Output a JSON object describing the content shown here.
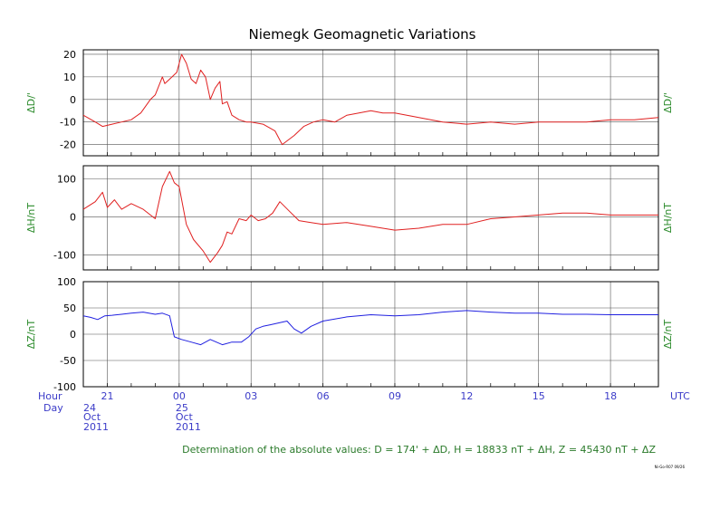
{
  "chart_data": {
    "type": "line",
    "title": "Niemegk  Geomagnetic Variations",
    "x_unit": "hours since 24 Oct 2011 20:00 UTC",
    "xlim": [
      0,
      24
    ],
    "x_ticks": [
      {
        "x": 1,
        "label": "21"
      },
      {
        "x": 4,
        "label": "00"
      },
      {
        "x": 7,
        "label": "03"
      },
      {
        "x": 10,
        "label": "06"
      },
      {
        "x": 13,
        "label": "09"
      },
      {
        "x": 16,
        "label": "12"
      },
      {
        "x": 19,
        "label": "15"
      },
      {
        "x": 22,
        "label": "18"
      }
    ],
    "hour_label": "Hour",
    "day_label": "Day",
    "utc_label": "UTC",
    "days": [
      {
        "x": 0,
        "day": "24",
        "month": "Oct",
        "year": "2011"
      },
      {
        "x": 4,
        "day": "25",
        "month": "Oct",
        "year": "2011"
      }
    ],
    "panels": [
      {
        "name": "D",
        "ylabel": "ΔD/'",
        "ylim": [
          -25,
          22
        ],
        "yticks": [
          -20,
          -10,
          0,
          10,
          20
        ],
        "color": "#e02020",
        "x": [
          0,
          0.5,
          0.8,
          1.2,
          1.6,
          2.0,
          2.4,
          2.8,
          3.0,
          3.3,
          3.4,
          3.6,
          3.9,
          4.1,
          4.3,
          4.5,
          4.7,
          4.9,
          5.1,
          5.3,
          5.5,
          5.7,
          5.8,
          6.0,
          6.2,
          6.5,
          6.8,
          7.0,
          7.5,
          8.0,
          8.3,
          8.8,
          9.2,
          9.6,
          10,
          10.5,
          11,
          11.5,
          12,
          12.5,
          13,
          13.5,
          14,
          14.5,
          15,
          16,
          17,
          18,
          19,
          20,
          21,
          22,
          23,
          24
        ],
        "y": [
          -7,
          -10,
          -12,
          -11,
          -10,
          -9,
          -6,
          0,
          2,
          10,
          7,
          9,
          12,
          20,
          16,
          9,
          7,
          13,
          10,
          0,
          5,
          8,
          -2,
          -1,
          -7,
          -9,
          -10,
          -10,
          -11,
          -14,
          -20,
          -16,
          -12,
          -10,
          -9,
          -10,
          -7,
          -6,
          -5,
          -6,
          -6,
          -7,
          -8,
          -9,
          -10,
          -11,
          -10,
          -11,
          -10,
          -10,
          -10,
          -9,
          -9,
          -8
        ]
      },
      {
        "name": "H",
        "ylabel": "ΔH/nT",
        "ylim": [
          -140,
          135
        ],
        "yticks": [
          -100,
          0,
          100
        ],
        "color": "#e02020",
        "x": [
          0,
          0.5,
          0.8,
          1.0,
          1.3,
          1.6,
          2.0,
          2.5,
          3.0,
          3.3,
          3.6,
          3.8,
          4.0,
          4.3,
          4.6,
          5.0,
          5.3,
          5.6,
          5.8,
          6.0,
          6.2,
          6.5,
          6.8,
          7.0,
          7.3,
          7.6,
          7.9,
          8.2,
          8.6,
          9.0,
          9.5,
          10,
          11,
          12,
          13,
          14,
          15,
          16,
          17,
          18,
          19,
          20,
          21,
          22,
          23,
          24
        ],
        "y": [
          20,
          40,
          65,
          25,
          45,
          20,
          35,
          20,
          -5,
          80,
          120,
          90,
          80,
          -20,
          -60,
          -90,
          -120,
          -95,
          -75,
          -40,
          -45,
          -5,
          -10,
          5,
          -10,
          -5,
          10,
          40,
          15,
          -10,
          -15,
          -20,
          -15,
          -25,
          -35,
          -30,
          -20,
          -20,
          -5,
          0,
          5,
          10,
          10,
          5,
          5,
          5
        ]
      },
      {
        "name": "Z",
        "ylabel": "ΔZ/nT",
        "ylim": [
          -100,
          100
        ],
        "yticks": [
          -100,
          -50,
          0,
          50,
          100
        ],
        "color": "#2020e0",
        "x": [
          0,
          0.3,
          0.6,
          0.9,
          1.2,
          1.6,
          2.0,
          2.5,
          3.0,
          3.3,
          3.6,
          3.8,
          4.1,
          4.5,
          4.9,
          5.3,
          5.8,
          6.2,
          6.6,
          6.9,
          7.2,
          7.5,
          7.8,
          8.2,
          8.5,
          8.8,
          9.1,
          9.5,
          10,
          11,
          12,
          13,
          14,
          15,
          16,
          17,
          18,
          19,
          20,
          21,
          22,
          23,
          24
        ],
        "y": [
          35,
          32,
          28,
          35,
          36,
          38,
          40,
          42,
          38,
          40,
          35,
          -5,
          -10,
          -15,
          -20,
          -10,
          -20,
          -15,
          -15,
          -5,
          10,
          15,
          18,
          22,
          25,
          10,
          2,
          15,
          25,
          33,
          37,
          35,
          37,
          42,
          45,
          42,
          40,
          40,
          38,
          38,
          37,
          37,
          37
        ]
      }
    ],
    "note": "Determination of the absolute values: D = 174' + ΔD, H = 18833 nT + ΔH, Z = 45430 nT + ΔZ",
    "credit": "Ni-Go-R07 09/26"
  }
}
